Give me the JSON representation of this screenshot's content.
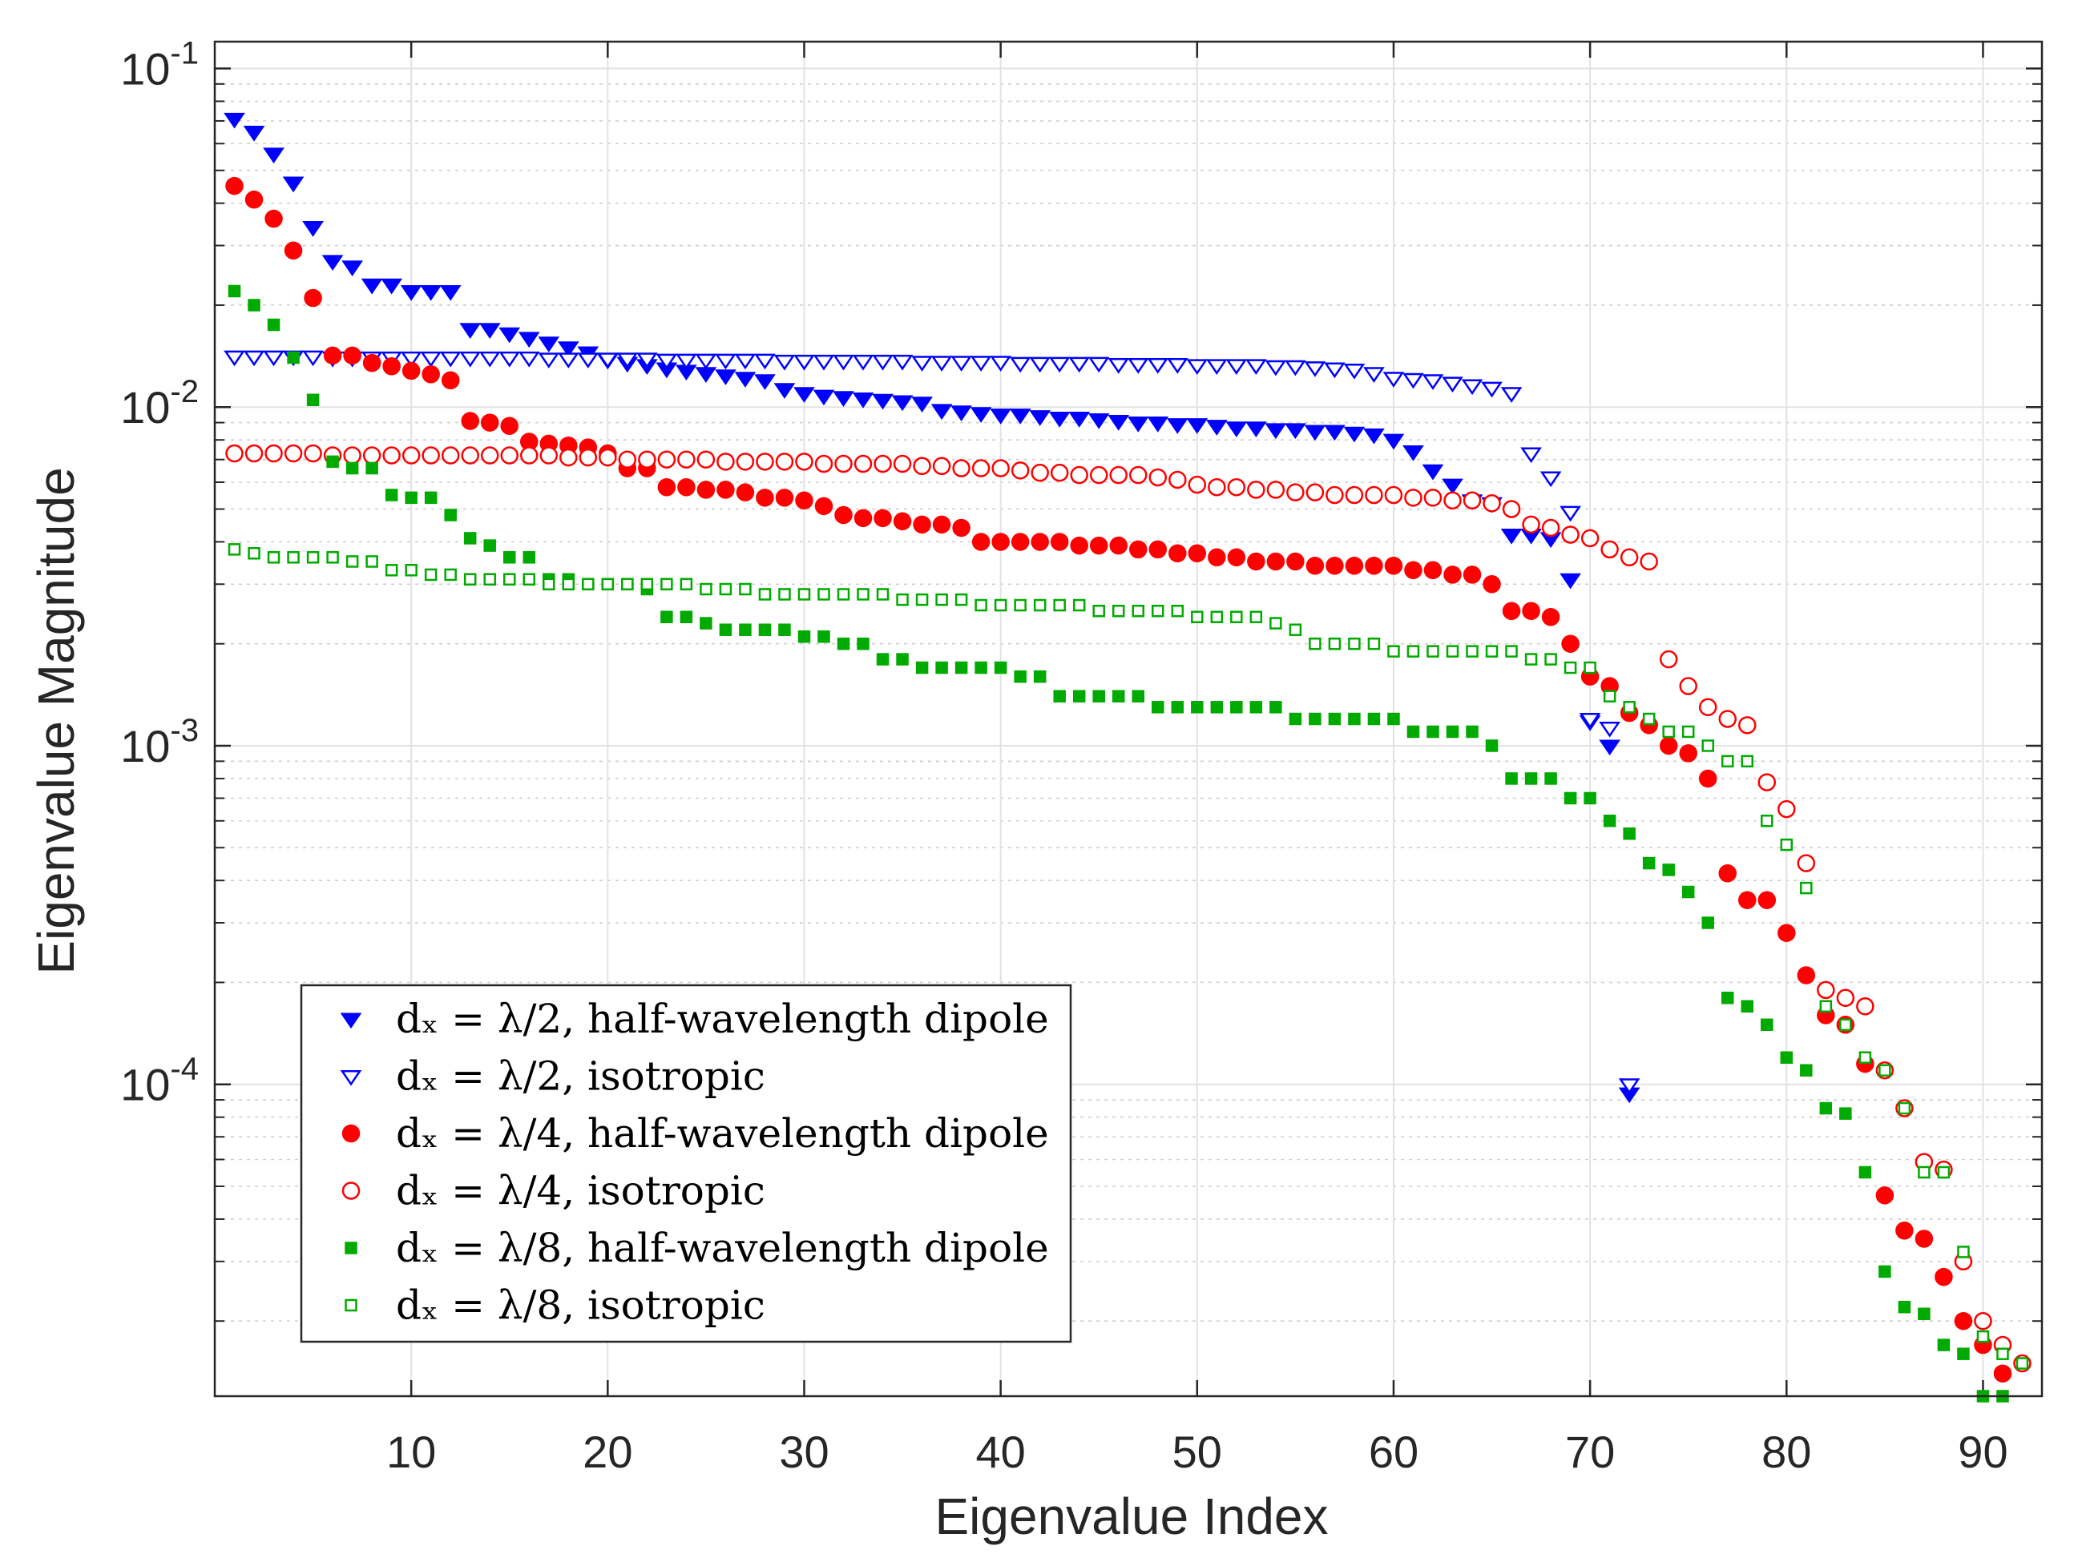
{
  "chart_data": {
    "type": "scatter",
    "title": "",
    "xlabel": "Eigenvalue Index",
    "ylabel": "Eigenvalue Magnitude",
    "xlim": [
      0,
      93
    ],
    "ylim": [
      1.2e-05,
      0.12
    ],
    "yscale": "log",
    "grid": true,
    "legend_location": "lower-left",
    "x_ticks": [
      {
        "value": 10,
        "label": "10"
      },
      {
        "value": 20,
        "label": "20"
      },
      {
        "value": 30,
        "label": "30"
      },
      {
        "value": 40,
        "label": "40"
      },
      {
        "value": 50,
        "label": "50"
      },
      {
        "value": 60,
        "label": "60"
      },
      {
        "value": 70,
        "label": "70"
      },
      {
        "value": 80,
        "label": "80"
      },
      {
        "value": 90,
        "label": "90"
      }
    ],
    "y_ticks": [
      {
        "value": 0.1,
        "base": "10",
        "exp": "-1"
      },
      {
        "value": 0.01,
        "base": "10",
        "exp": "-2"
      },
      {
        "value": 0.001,
        "base": "10",
        "exp": "-3"
      },
      {
        "value": 0.0001,
        "base": "10",
        "exp": "-4"
      }
    ],
    "series": [
      {
        "name": "dx = λ/2, half-wavelength dipole",
        "legend_label": "dₓ = λ/2, half-wavelength dipole",
        "marker": "triangle-down",
        "filled": true,
        "color": "#0000ff",
        "x": [
          1,
          2,
          3,
          4,
          5,
          6,
          7,
          8,
          9,
          10,
          11,
          12,
          13,
          14,
          15,
          16,
          17,
          18,
          19,
          20,
          21,
          22,
          23,
          24,
          25,
          26,
          27,
          28,
          29,
          30,
          31,
          32,
          33,
          34,
          35,
          36,
          37,
          38,
          39,
          40,
          41,
          42,
          43,
          44,
          45,
          46,
          47,
          48,
          49,
          50,
          51,
          52,
          53,
          54,
          55,
          56,
          57,
          58,
          59,
          60,
          61,
          62,
          63,
          64,
          65,
          66,
          67,
          68,
          69,
          70,
          71,
          72
        ],
        "values": [
          0.071,
          0.065,
          0.056,
          0.046,
          0.034,
          0.027,
          0.026,
          0.023,
          0.023,
          0.022,
          0.022,
          0.022,
          0.017,
          0.017,
          0.0165,
          0.016,
          0.0155,
          0.015,
          0.0145,
          0.0138,
          0.0135,
          0.0133,
          0.013,
          0.0128,
          0.0126,
          0.0124,
          0.0122,
          0.012,
          0.0113,
          0.011,
          0.0108,
          0.0107,
          0.0106,
          0.0105,
          0.0104,
          0.0103,
          0.0098,
          0.0097,
          0.0096,
          0.0095,
          0.0095,
          0.0094,
          0.0093,
          0.0093,
          0.0092,
          0.0091,
          0.009,
          0.009,
          0.0089,
          0.0089,
          0.0088,
          0.0087,
          0.0087,
          0.0086,
          0.0086,
          0.0085,
          0.0085,
          0.0084,
          0.0083,
          0.008,
          0.0074,
          0.0065,
          0.0059,
          0.0053,
          0.0052,
          0.0042,
          0.0042,
          0.0041,
          0.0031,
          0.00118,
          0.001,
          9.4e-05
        ]
      },
      {
        "name": "dx = λ/2, isotropic",
        "legend_label": "dₓ = λ/2, isotropic",
        "marker": "triangle-down",
        "filled": false,
        "color": "#0000ff",
        "x": [
          1,
          2,
          3,
          4,
          5,
          6,
          7,
          8,
          9,
          10,
          11,
          12,
          13,
          14,
          15,
          16,
          17,
          18,
          19,
          20,
          21,
          22,
          23,
          24,
          25,
          26,
          27,
          28,
          29,
          30,
          31,
          32,
          33,
          34,
          35,
          36,
          37,
          38,
          39,
          40,
          41,
          42,
          43,
          44,
          45,
          46,
          47,
          48,
          49,
          50,
          51,
          52,
          53,
          54,
          55,
          56,
          57,
          58,
          59,
          60,
          61,
          62,
          63,
          64,
          65,
          66,
          67,
          68,
          69,
          70,
          71,
          72
        ],
        "values": [
          0.0141,
          0.0141,
          0.0141,
          0.0141,
          0.0141,
          0.014,
          0.014,
          0.014,
          0.014,
          0.014,
          0.014,
          0.014,
          0.014,
          0.014,
          0.014,
          0.014,
          0.0139,
          0.0139,
          0.0139,
          0.0139,
          0.0139,
          0.0139,
          0.0138,
          0.0138,
          0.0138,
          0.0138,
          0.0138,
          0.0138,
          0.0137,
          0.0137,
          0.0137,
          0.0137,
          0.0137,
          0.0137,
          0.0137,
          0.0136,
          0.0136,
          0.0136,
          0.0136,
          0.0136,
          0.0135,
          0.0135,
          0.0135,
          0.0135,
          0.0135,
          0.0134,
          0.0134,
          0.0134,
          0.0134,
          0.0133,
          0.0133,
          0.0133,
          0.0133,
          0.0132,
          0.0132,
          0.0131,
          0.013,
          0.0129,
          0.0126,
          0.0122,
          0.0121,
          0.012,
          0.0118,
          0.0116,
          0.0114,
          0.011,
          0.0073,
          0.0062,
          0.0049,
          0.0012,
          0.00113,
          0.0001
        ]
      },
      {
        "name": "dx = λ/4, half-wavelength dipole",
        "legend_label": "dₓ = λ/4, half-wavelength dipole",
        "marker": "circle",
        "filled": true,
        "color": "#ff0000",
        "x": [
          1,
          2,
          3,
          4,
          5,
          6,
          7,
          8,
          9,
          10,
          11,
          12,
          13,
          14,
          15,
          16,
          17,
          18,
          19,
          20,
          21,
          22,
          23,
          24,
          25,
          26,
          27,
          28,
          29,
          30,
          31,
          32,
          33,
          34,
          35,
          36,
          37,
          38,
          39,
          40,
          41,
          42,
          43,
          44,
          45,
          46,
          47,
          48,
          49,
          50,
          51,
          52,
          53,
          54,
          55,
          56,
          57,
          58,
          59,
          60,
          61,
          62,
          63,
          64,
          65,
          66,
          67,
          68,
          69,
          70,
          71,
          72,
          73,
          74,
          75,
          76,
          77,
          78,
          79,
          80,
          81,
          82,
          83,
          84,
          85,
          86,
          87,
          88,
          89,
          90,
          91
        ],
        "values": [
          0.045,
          0.041,
          0.036,
          0.029,
          0.021,
          0.0142,
          0.0142,
          0.0135,
          0.0132,
          0.0128,
          0.0125,
          0.012,
          0.0091,
          0.009,
          0.0088,
          0.0079,
          0.0078,
          0.0077,
          0.0076,
          0.0073,
          0.0066,
          0.0066,
          0.0058,
          0.0058,
          0.0057,
          0.0057,
          0.0056,
          0.0054,
          0.0054,
          0.0053,
          0.0051,
          0.0048,
          0.0047,
          0.0047,
          0.0046,
          0.0045,
          0.0045,
          0.0044,
          0.004,
          0.004,
          0.004,
          0.004,
          0.004,
          0.0039,
          0.0039,
          0.0039,
          0.0038,
          0.0038,
          0.0037,
          0.0037,
          0.0036,
          0.0036,
          0.0035,
          0.0035,
          0.0035,
          0.0034,
          0.0034,
          0.0034,
          0.0034,
          0.0034,
          0.0033,
          0.0033,
          0.0032,
          0.0032,
          0.003,
          0.0025,
          0.0025,
          0.0024,
          0.002,
          0.0016,
          0.0015,
          0.00125,
          0.00115,
          0.001,
          0.00095,
          0.0008,
          0.00042,
          0.00035,
          0.00035,
          0.00028,
          0.00021,
          0.00016,
          0.00015,
          0.000115,
          4.7e-05,
          3.7e-05,
          3.5e-05,
          2.7e-05,
          2e-05,
          1.7e-05,
          1.4e-05
        ]
      },
      {
        "name": "dx = λ/4, isotropic",
        "legend_label": "dₓ = λ/4, isotropic",
        "marker": "circle",
        "filled": false,
        "color": "#ff0000",
        "x": [
          1,
          2,
          3,
          4,
          5,
          6,
          7,
          8,
          9,
          10,
          11,
          12,
          13,
          14,
          15,
          16,
          17,
          18,
          19,
          20,
          21,
          22,
          23,
          24,
          25,
          26,
          27,
          28,
          29,
          30,
          31,
          32,
          33,
          34,
          35,
          36,
          37,
          38,
          39,
          40,
          41,
          42,
          43,
          44,
          45,
          46,
          47,
          48,
          49,
          50,
          51,
          52,
          53,
          54,
          55,
          56,
          57,
          58,
          59,
          60,
          61,
          62,
          63,
          64,
          65,
          66,
          67,
          68,
          69,
          70,
          71,
          72,
          73,
          74,
          75,
          76,
          77,
          78,
          79,
          80,
          81,
          82,
          83,
          84,
          85,
          86,
          87,
          88,
          89,
          90,
          91,
          92
        ],
        "values": [
          0.0073,
          0.0073,
          0.0073,
          0.0073,
          0.0073,
          0.0072,
          0.0072,
          0.0072,
          0.0072,
          0.0072,
          0.0072,
          0.0072,
          0.0072,
          0.0072,
          0.0072,
          0.0072,
          0.0072,
          0.0071,
          0.0071,
          0.0071,
          0.007,
          0.007,
          0.007,
          0.007,
          0.007,
          0.0069,
          0.0069,
          0.0069,
          0.0069,
          0.0069,
          0.0068,
          0.0068,
          0.0068,
          0.0068,
          0.0068,
          0.0067,
          0.0067,
          0.0066,
          0.0066,
          0.0066,
          0.0065,
          0.0064,
          0.0064,
          0.0063,
          0.0063,
          0.0063,
          0.0063,
          0.0062,
          0.0061,
          0.0059,
          0.0058,
          0.0058,
          0.0057,
          0.0057,
          0.0056,
          0.0056,
          0.0055,
          0.0055,
          0.0055,
          0.0055,
          0.0054,
          0.0054,
          0.0053,
          0.0053,
          0.0052,
          0.005,
          0.0045,
          0.0044,
          0.0042,
          0.0041,
          0.0038,
          0.0036,
          0.0035,
          0.0018,
          0.0015,
          0.0013,
          0.0012,
          0.00115,
          0.00078,
          0.00065,
          0.00045,
          0.00019,
          0.00018,
          0.00017,
          0.00011,
          8.5e-05,
          5.9e-05,
          5.6e-05,
          3e-05,
          2e-05,
          1.7e-05,
          1.5e-05
        ]
      },
      {
        "name": "dx = λ/8, half-wavelength dipole",
        "legend_label": "dₓ = λ/8, half-wavelength dipole",
        "marker": "square",
        "filled": true,
        "color": "#00aa00",
        "x": [
          1,
          2,
          3,
          4,
          5,
          6,
          7,
          8,
          9,
          10,
          11,
          12,
          13,
          14,
          15,
          16,
          17,
          18,
          19,
          20,
          21,
          22,
          23,
          24,
          25,
          26,
          27,
          28,
          29,
          30,
          31,
          32,
          33,
          34,
          35,
          36,
          37,
          38,
          39,
          40,
          41,
          42,
          43,
          44,
          45,
          46,
          47,
          48,
          49,
          50,
          51,
          52,
          53,
          54,
          55,
          56,
          57,
          58,
          59,
          60,
          61,
          62,
          63,
          64,
          65,
          66,
          67,
          68,
          69,
          70,
          71,
          72,
          73,
          74,
          75,
          76,
          77,
          78,
          79,
          80,
          81,
          82,
          83,
          84,
          85,
          86,
          87,
          88,
          89,
          90,
          91
        ],
        "values": [
          0.022,
          0.02,
          0.0175,
          0.014,
          0.0105,
          0.0069,
          0.0066,
          0.0066,
          0.0055,
          0.0054,
          0.0054,
          0.0048,
          0.0041,
          0.0039,
          0.0036,
          0.0036,
          0.0031,
          0.0031,
          0.003,
          0.003,
          0.003,
          0.0029,
          0.0024,
          0.0024,
          0.0023,
          0.0022,
          0.0022,
          0.0022,
          0.0022,
          0.0021,
          0.0021,
          0.002,
          0.002,
          0.0018,
          0.0018,
          0.0017,
          0.0017,
          0.0017,
          0.0017,
          0.0017,
          0.0016,
          0.0016,
          0.0014,
          0.0014,
          0.0014,
          0.0014,
          0.0014,
          0.0013,
          0.0013,
          0.0013,
          0.0013,
          0.0013,
          0.0013,
          0.0013,
          0.0012,
          0.0012,
          0.0012,
          0.0012,
          0.0012,
          0.0012,
          0.0011,
          0.0011,
          0.0011,
          0.0011,
          0.001,
          0.0008,
          0.0008,
          0.0008,
          0.0007,
          0.0007,
          0.0006,
          0.00055,
          0.00045,
          0.00043,
          0.00037,
          0.0003,
          0.00018,
          0.00017,
          0.00015,
          0.00012,
          0.00011,
          8.5e-05,
          8.2e-05,
          5.5e-05,
          2.8e-05,
          2.2e-05,
          2.1e-05,
          1.7e-05,
          1.6e-05,
          1.2e-05,
          1.2e-05
        ]
      },
      {
        "name": "dx = λ/8, isotropic",
        "legend_label": "dₓ = λ/8, isotropic",
        "marker": "square",
        "filled": false,
        "color": "#00aa00",
        "x": [
          1,
          2,
          3,
          4,
          5,
          6,
          7,
          8,
          9,
          10,
          11,
          12,
          13,
          14,
          15,
          16,
          17,
          18,
          19,
          20,
          21,
          22,
          23,
          24,
          25,
          26,
          27,
          28,
          29,
          30,
          31,
          32,
          33,
          34,
          35,
          36,
          37,
          38,
          39,
          40,
          41,
          42,
          43,
          44,
          45,
          46,
          47,
          48,
          49,
          50,
          51,
          52,
          53,
          54,
          55,
          56,
          57,
          58,
          59,
          60,
          61,
          62,
          63,
          64,
          65,
          66,
          67,
          68,
          69,
          70,
          71,
          72,
          73,
          74,
          75,
          76,
          77,
          78,
          79,
          80,
          81,
          82,
          83,
          84,
          85,
          86,
          87,
          88,
          89,
          90,
          91,
          92
        ],
        "values": [
          0.0038,
          0.0037,
          0.0036,
          0.0036,
          0.0036,
          0.0036,
          0.0035,
          0.0035,
          0.0033,
          0.0033,
          0.0032,
          0.0032,
          0.0031,
          0.0031,
          0.0031,
          0.0031,
          0.003,
          0.003,
          0.003,
          0.003,
          0.003,
          0.003,
          0.003,
          0.003,
          0.0029,
          0.0029,
          0.0029,
          0.0028,
          0.0028,
          0.0028,
          0.0028,
          0.0028,
          0.0028,
          0.0028,
          0.0027,
          0.0027,
          0.0027,
          0.0027,
          0.0026,
          0.0026,
          0.0026,
          0.0026,
          0.0026,
          0.0026,
          0.0025,
          0.0025,
          0.0025,
          0.0025,
          0.0025,
          0.0024,
          0.0024,
          0.0024,
          0.0024,
          0.0023,
          0.0022,
          0.002,
          0.002,
          0.002,
          0.002,
          0.0019,
          0.0019,
          0.0019,
          0.0019,
          0.0019,
          0.0019,
          0.0019,
          0.0018,
          0.0018,
          0.0017,
          0.0017,
          0.0014,
          0.0013,
          0.0012,
          0.0011,
          0.0011,
          0.001,
          0.0009,
          0.0009,
          0.0006,
          0.00051,
          0.00038,
          0.00017,
          0.00015,
          0.00012,
          0.00011,
          8.5e-05,
          5.5e-05,
          5.5e-05,
          3.2e-05,
          1.8e-05,
          1.6e-05,
          1.5e-05
        ]
      }
    ]
  }
}
